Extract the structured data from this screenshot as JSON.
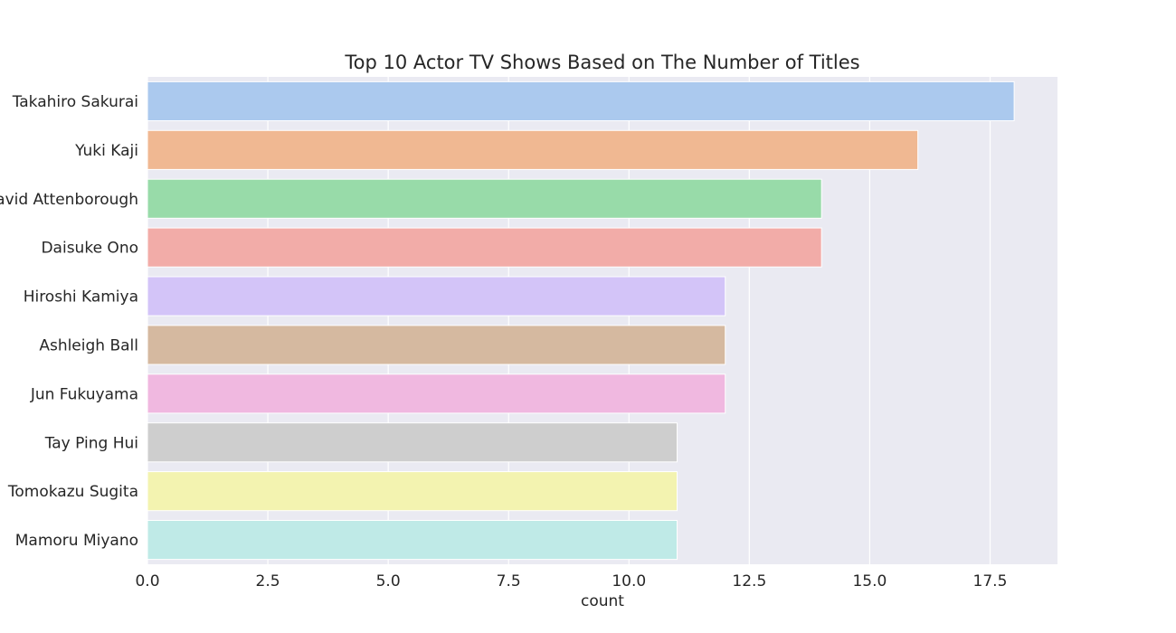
{
  "chart_data": {
    "type": "bar",
    "orientation": "horizontal",
    "title": "Top 10 Actor TV Shows Based on The Number of Titles",
    "xlabel": "count",
    "ylabel": "",
    "categories": [
      "Takahiro Sakurai",
      "Yuki Kaji",
      "David Attenborough",
      "Daisuke Ono",
      "Hiroshi Kamiya",
      "Ashleigh Ball",
      "Jun Fukuyama",
      "Tay Ping Hui",
      "Tomokazu Sugita",
      "Mamoru Miyano"
    ],
    "values": [
      18,
      16,
      14,
      14,
      12,
      12,
      12,
      11,
      11,
      11
    ],
    "colors": [
      "#abc9ee",
      "#f0b892",
      "#98dba9",
      "#f2aca8",
      "#d3c4f8",
      "#d5b9a0",
      "#f0b8e0",
      "#cecece",
      "#f3f3b0",
      "#bfeae7"
    ],
    "xlim": [
      0,
      18.9
    ],
    "xticks": [
      "0.0",
      "2.5",
      "5.0",
      "7.5",
      "10.0",
      "12.5",
      "15.0",
      "17.5"
    ],
    "grid": true,
    "background": "#eaeaf2"
  }
}
